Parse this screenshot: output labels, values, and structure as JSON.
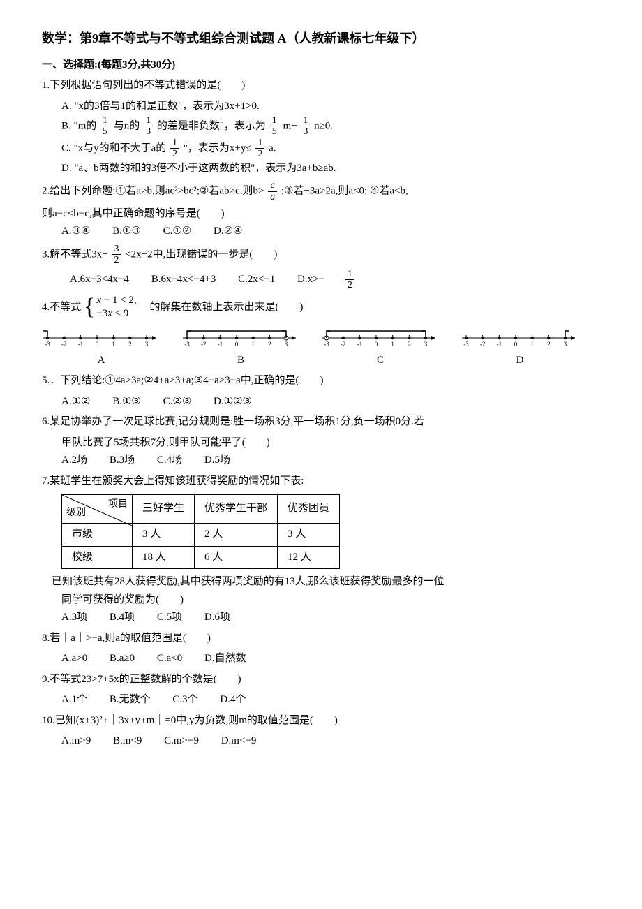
{
  "title": "数学：第9章不等式与不等式组综合测试题 A（人教新课标七年级下）",
  "section1": "一、选择题:(每题3分,共30分)",
  "q1": {
    "stem": "1.下列根据语句列出的不等式错误的是(　　)",
    "A": "A. \"x的3倍与1的和是正数\"，表示为3x+1>0.",
    "B_pre": "B. \"m的",
    "B_mid1": "与n的",
    "B_mid2": "的差是非负数\"，表示为",
    "B_mid3": "m−",
    "B_end": "n≥0.",
    "C_pre": "C. \"x与y的和不大于a的",
    "C_mid": "\"，表示为x+y≤",
    "C_end": "a.",
    "D": "D. \"a、b两数的和的3倍不小于这两数的积\"，表示为3a+b≥ab.",
    "f15n": "1",
    "f15d": "5",
    "f13n": "1",
    "f13d": "3",
    "f12n": "1",
    "f12d": "2"
  },
  "q2": {
    "stem_pre": "2.给出下列命题:①若a>b,则ac²>bc²;②若ab>c,则b>",
    "stem_post": ";③若−3a>2a,则a<0; ④若a<b,",
    "line2": "则a−c<b−c,其中正确命题的序号是(　　)",
    "cn": "c",
    "ca": "a",
    "A": "A.③④",
    "B": "B.①③",
    "C": "C.①②",
    "D": "D.②④"
  },
  "q3": {
    "stem_pre": "3.解不等式3x−",
    "stem_post": "<2x−2中,出现错误的一步是(　　)",
    "n": "3",
    "d": "2",
    "A": "A.6x−3<4x−4",
    "B": "B.6x−4x<−4+3",
    "C": "C.2x<−1",
    "D_pre": "D.x>−",
    "Dn": "1",
    "Dd": "2"
  },
  "q4": {
    "stem_pre": "4.不等式",
    "line1": "x − 1 < 2,",
    "line2": "−3x ≤ 9",
    "stem_post": "　的解集在数轴上表示出来是(　　)",
    "labels": {
      "A": "A",
      "B": "B",
      "C": "C",
      "D": "D"
    }
  },
  "q5": {
    "stem": "5.．下列结论:①4a>3a;②4+a>3+a;③4−a>3−a中,正确的是(　　)",
    "A": "A.①②",
    "B": "B.①③",
    "C": "C.②③",
    "D": "D.①②③"
  },
  "q6": {
    "l1": "6.某足协举办了一次足球比赛,记分规则是:胜一场积3分,平一场积1分,负一场积0分.若",
    "l2": "甲队比赛了5场共积7分,则甲队可能平了(　　)",
    "A": "A.2场",
    "B": "B.3场",
    "C": "C.4场",
    "D": "D.5场"
  },
  "q7": {
    "stem": "7.某班学生在颁奖大会上得知该班获得奖励的情况如下表:",
    "head_item": "项目",
    "head_level": "级别",
    "cols": {
      "c1": "三好学生",
      "c2": "优秀学生干部",
      "c3": "优秀团员"
    },
    "rows": [
      {
        "level": "市级",
        "c1": "3 人",
        "c2": "2 人",
        "c3": "3 人"
      },
      {
        "level": "校级",
        "c1": "18 人",
        "c2": "6 人",
        "c3": "12 人"
      }
    ],
    "post1": "已知该班共有28人获得奖励,其中获得两项奖励的有13人,那么该班获得奖励最多的一位",
    "post2": "同学可获得的奖励为(　　)",
    "A": "A.3项",
    "B": "B.4项",
    "C": "C.5项",
    "D": "D.6项"
  },
  "q8": {
    "stem": "8.若｜a｜>−a,则a的取值范围是(　　)",
    "A": "A.a>0",
    "B": "B.a≥0",
    "C": "C.a<0",
    "D": "D.自然数"
  },
  "q9": {
    "stem": "9.不等式23>7+5x的正整数解的个数是(　　)",
    "A": "A.1个",
    "B": "B.无数个",
    "C": "C.3个",
    "D": "D.4个"
  },
  "q10": {
    "stem": "10.已知(x+3)²+｜3x+y+m｜=0中,y为负数,则m的取值范围是(　　)",
    "A": "A.m>9",
    "B": "B.m<9",
    "C": "C.m>−9",
    "D": "D.m<−9"
  },
  "nl_style": {
    "stroke": "#000",
    "fill": "#000",
    "tick_h": 4,
    "dot_r": 2.2,
    "open_r": 3,
    "width": 170,
    "height": 32,
    "baseline": 14,
    "label_fs": 9
  }
}
